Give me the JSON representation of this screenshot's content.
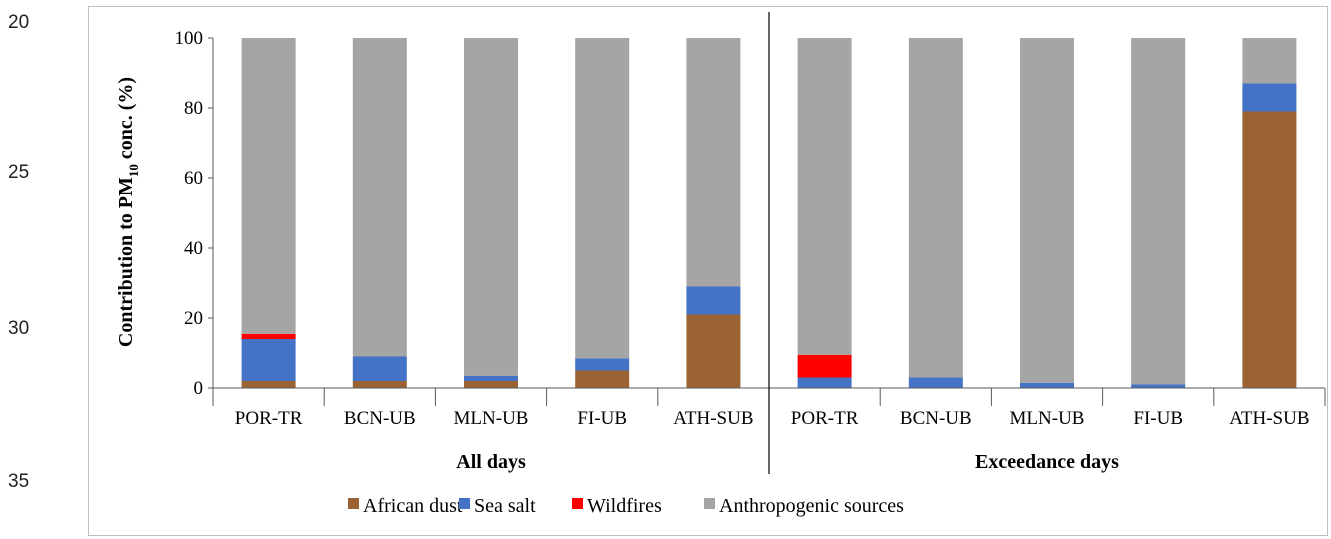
{
  "line_numbers": [
    "20",
    "25",
    "30",
    "35"
  ],
  "chart_data": {
    "type": "bar",
    "stacked": true,
    "ylabel_main": "Contribution  to PM",
    "ylabel_sub": "10",
    "ylabel_tail": " conc. (%)",
    "ylim": [
      0,
      100
    ],
    "yticks": [
      "0",
      "20",
      "40",
      "60",
      "80",
      "100"
    ],
    "categories": [
      "POR-TR",
      "BCN-UB",
      "MLN-UB",
      "FI-UB",
      "ATH-SUB",
      "POR-TR",
      "BCN-UB",
      "MLN-UB",
      "FI-UB",
      "ATH-SUB"
    ],
    "groups": [
      {
        "label": "All days",
        "count": 5
      },
      {
        "label": "Exceedance days",
        "count": 5
      }
    ],
    "series": [
      {
        "name": "African dust",
        "color": "#9b6333",
        "values": [
          2,
          2,
          2,
          5,
          21,
          0,
          0,
          0,
          0,
          79
        ]
      },
      {
        "name": "Sea salt",
        "color": "#4472c4",
        "values": [
          12,
          7,
          1.5,
          3.5,
          8,
          3,
          3,
          1.5,
          1,
          8
        ]
      },
      {
        "name": "Wildfires",
        "color": "#ff0000",
        "values": [
          1.5,
          0,
          0,
          0,
          0,
          6.5,
          0,
          0,
          0,
          0
        ]
      },
      {
        "name": "Anthropogenic sources",
        "color": "#a5a5a5",
        "values": [
          84.5,
          91,
          96.5,
          91.5,
          71,
          90.5,
          97,
          98.5,
          99,
          13
        ]
      }
    ],
    "grid": false,
    "legend_position": "bottom"
  }
}
